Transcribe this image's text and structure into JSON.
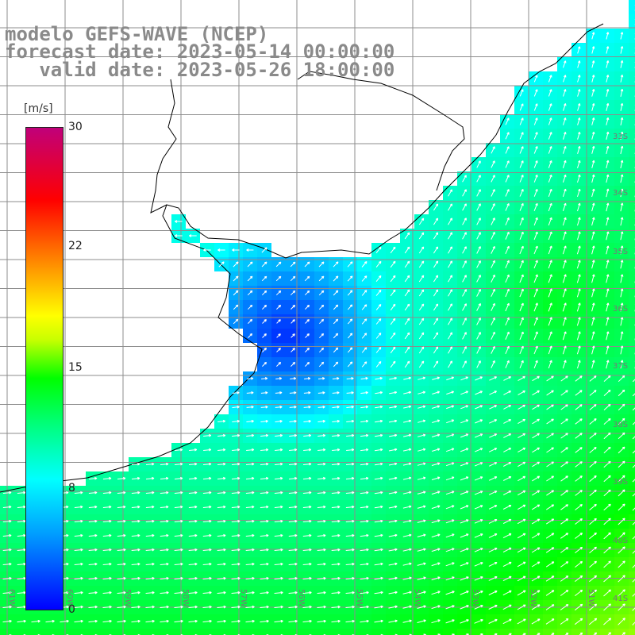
{
  "title": {
    "model": "modelo GEFS-WAVE (NCEP)",
    "forecast": "forecast date: 2023-05-14 00:00:00",
    "valid": "   valid date: 2023-05-26 18:00:00"
  },
  "colorbar": {
    "unit": "[m/s]",
    "ticks": [
      "30",
      "22",
      "15",
      "8",
      "0"
    ],
    "colors": [
      "#0000ff",
      "#00a0ff",
      "#00ffff",
      "#00ff80",
      "#00ff00",
      "#c8ff00",
      "#ffff00",
      "#ff8000",
      "#ff0000",
      "#c0007a"
    ]
  },
  "map": {
    "lat_labels": [
      "33S",
      "34S",
      "35S",
      "36S",
      "37S",
      "38S",
      "39S",
      "40S",
      "41S"
    ],
    "lon_labels": [
      "61W",
      "60W",
      "59W",
      "58W",
      "57W",
      "56W",
      "55W",
      "54W",
      "53W",
      "52W",
      "51W"
    ],
    "land_color": "#ffffff",
    "grid_color": "#8c8c8c",
    "arrow_color": "#ffffff"
  }
}
